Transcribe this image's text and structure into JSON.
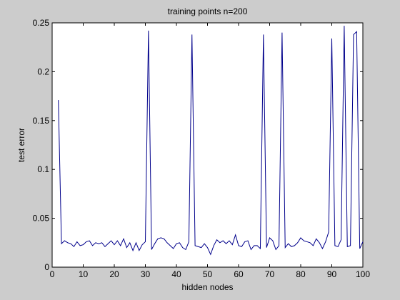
{
  "chart_data": {
    "type": "line",
    "title": "training points n=200",
    "xlabel": "hidden nodes",
    "ylabel": "test error",
    "xlim": [
      0,
      100
    ],
    "ylim": [
      0,
      0.25
    ],
    "xticks": [
      0,
      10,
      20,
      30,
      40,
      50,
      60,
      70,
      80,
      90,
      100
    ],
    "yticks": [
      0,
      0.05,
      0.1,
      0.15,
      0.2,
      0.25
    ],
    "xtick_labels": [
      "0",
      "10",
      "20",
      "30",
      "40",
      "50",
      "60",
      "70",
      "80",
      "90",
      "100"
    ],
    "ytick_labels": [
      "0",
      "0.05",
      "0.1",
      "0.15",
      "0.2",
      "0.25"
    ],
    "grid": false,
    "series": [
      {
        "color": "#00008b",
        "x": [
          2,
          3,
          4,
          5,
          6,
          7,
          8,
          9,
          10,
          11,
          12,
          13,
          14,
          15,
          16,
          17,
          18,
          19,
          20,
          21,
          22,
          23,
          24,
          25,
          26,
          27,
          28,
          29,
          30,
          31,
          32,
          33,
          34,
          35,
          36,
          37,
          38,
          39,
          40,
          41,
          42,
          43,
          44,
          45,
          46,
          47,
          48,
          49,
          50,
          51,
          52,
          53,
          54,
          55,
          56,
          57,
          58,
          59,
          60,
          61,
          62,
          63,
          64,
          65,
          66,
          67,
          68,
          69,
          70,
          71,
          72,
          73,
          74,
          75,
          76,
          77,
          78,
          79,
          80,
          81,
          82,
          83,
          84,
          85,
          86,
          87,
          88,
          89,
          90,
          91,
          92,
          93,
          94,
          95,
          96,
          97,
          98,
          99,
          100
        ],
        "y": [
          0.171,
          0.024,
          0.027,
          0.025,
          0.024,
          0.021,
          0.026,
          0.022,
          0.023,
          0.026,
          0.027,
          0.022,
          0.025,
          0.024,
          0.025,
          0.021,
          0.024,
          0.027,
          0.023,
          0.027,
          0.022,
          0.029,
          0.02,
          0.025,
          0.017,
          0.025,
          0.017,
          0.023,
          0.026,
          0.242,
          0.018,
          0.024,
          0.029,
          0.03,
          0.029,
          0.025,
          0.022,
          0.019,
          0.024,
          0.025,
          0.02,
          0.018,
          0.026,
          0.238,
          0.022,
          0.021,
          0.02,
          0.024,
          0.02,
          0.013,
          0.022,
          0.028,
          0.025,
          0.027,
          0.024,
          0.027,
          0.023,
          0.033,
          0.022,
          0.021,
          0.026,
          0.027,
          0.018,
          0.022,
          0.022,
          0.019,
          0.238,
          0.02,
          0.03,
          0.027,
          0.018,
          0.022,
          0.24,
          0.02,
          0.024,
          0.021,
          0.022,
          0.025,
          0.03,
          0.027,
          0.026,
          0.025,
          0.022,
          0.029,
          0.025,
          0.019,
          0.026,
          0.036,
          0.234,
          0.022,
          0.021,
          0.028,
          0.247,
          0.021,
          0.022,
          0.238,
          0.241,
          0.019,
          0.026
        ]
      }
    ]
  }
}
